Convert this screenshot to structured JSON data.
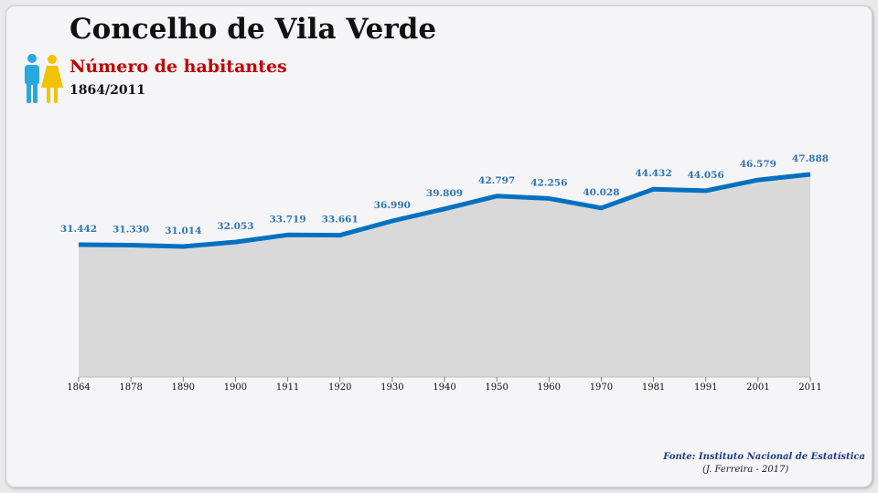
{
  "header": {
    "title": "Concelho de Vila Verde",
    "subtitle": "Número de habitantes",
    "period": "1864/2011"
  },
  "icons": {
    "people": "man-woman-icon",
    "man_color": "#29a8e0",
    "woman_color": "#f2c200"
  },
  "footer": {
    "source": "Fonte: Instituto Nacional de Estatística",
    "author": "(J. Ferreira - 2017)"
  },
  "colors": {
    "line": "#0070c0",
    "area": "#d9d9d9",
    "labels": "#2e75b6"
  },
  "chart_data": {
    "type": "area",
    "x": [
      "1864",
      "1878",
      "1890",
      "1900",
      "1911",
      "1920",
      "1930",
      "1940",
      "1950",
      "1960",
      "1970",
      "1981",
      "1991",
      "2001",
      "2011"
    ],
    "values": [
      31442,
      31330,
      31014,
      32053,
      33719,
      33661,
      36990,
      39809,
      42797,
      42256,
      40028,
      44432,
      44056,
      46579,
      47888
    ],
    "value_labels": [
      "31.442",
      "31.330",
      "31.014",
      "32.053",
      "33.719",
      "33.661",
      "36.990",
      "39.809",
      "42.797",
      "42.256",
      "40.028",
      "44.432",
      "44.056",
      "46.579",
      "47.888"
    ],
    "grid": false,
    "legend": "none",
    "markers": false
  }
}
